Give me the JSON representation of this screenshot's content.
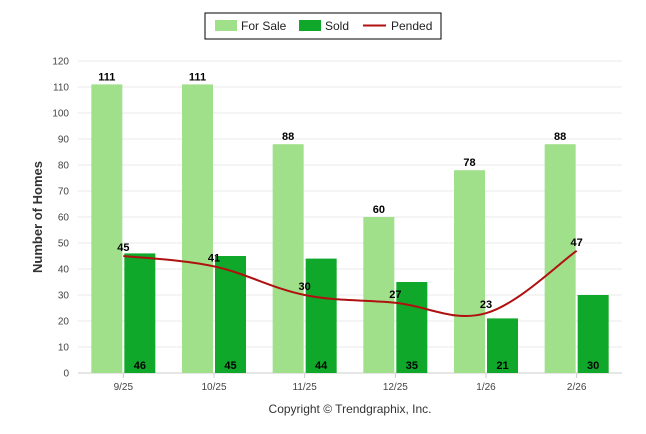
{
  "chart_data": {
    "type": "bar",
    "categories": [
      "9/25",
      "10/25",
      "11/25",
      "12/25",
      "1/26",
      "2/26"
    ],
    "series": [
      {
        "name": "For Sale",
        "kind": "bar",
        "color": "#a0e08a",
        "values": [
          111,
          111,
          88,
          60,
          78,
          88
        ]
      },
      {
        "name": "Sold",
        "kind": "bar",
        "color": "#10a82a",
        "values": [
          46,
          45,
          44,
          35,
          21,
          30
        ]
      },
      {
        "name": "Pended",
        "kind": "line",
        "color": "#b01010",
        "values": [
          45,
          41,
          30,
          27,
          23,
          47
        ]
      }
    ],
    "ylabel": "Number of Homes",
    "xlabel": "",
    "ylim": [
      0,
      120
    ],
    "yticks": [
      0,
      10,
      20,
      30,
      40,
      50,
      60,
      70,
      80,
      90,
      100,
      110,
      120
    ],
    "grid": true,
    "legend": "top-center",
    "footer": "Copyright © Trendgraphix, Inc."
  }
}
